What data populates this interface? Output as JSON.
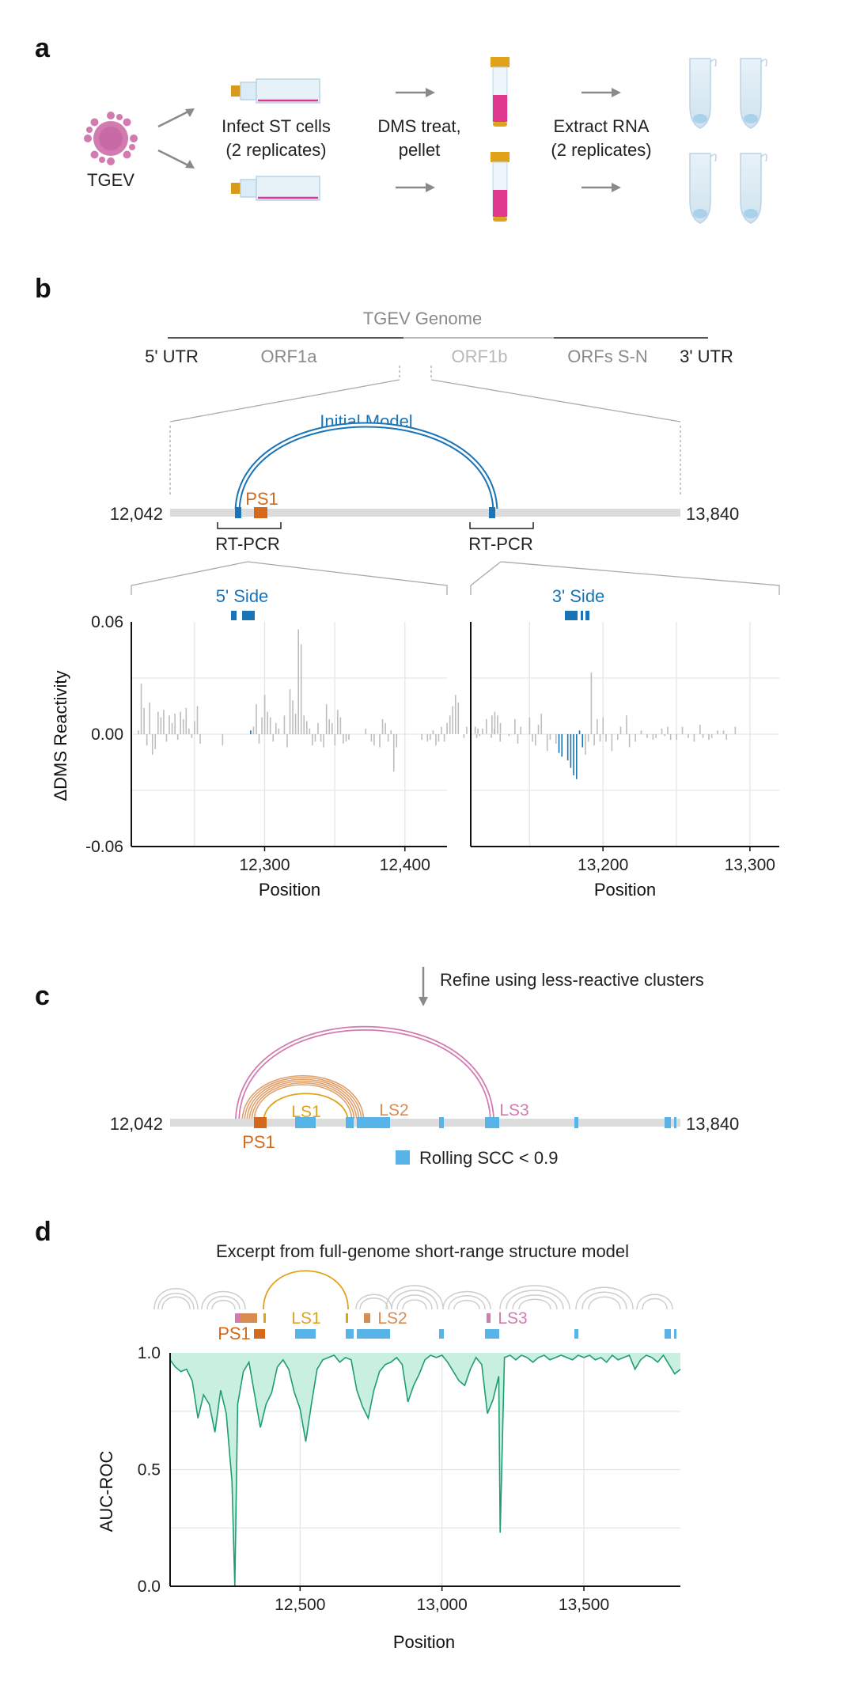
{
  "panels": {
    "a": "a",
    "b": "b",
    "c": "c",
    "d": "d"
  },
  "panel_a": {
    "virus_label": "TGEV",
    "step1_line1": "Infect ST cells",
    "step1_line2": "(2 replicates)",
    "step2_line1": "DMS treat,",
    "step2_line2": "pellet",
    "step3_line1": "Extract RNA",
    "step3_line2": "(2 replicates)"
  },
  "panel_b": {
    "genome_title": "TGEV Genome",
    "utr5": "5' UTR",
    "orf1a": "ORF1a",
    "orf1b": "ORF1b",
    "orfs_sn": "ORFs S-N",
    "utr3": "3' UTR",
    "initial_model": "Initial Model",
    "ps1": "PS1",
    "start_pos": "12,042",
    "end_pos": "13,840",
    "rtpcr_left": "RT-PCR",
    "rtpcr_right": "RT-PCR",
    "side5": "5' Side",
    "side3": "3' Side"
  },
  "panel_c": {
    "refine_label": "Refine using less-reactive clusters",
    "start_pos": "12,042",
    "end_pos": "13,840",
    "ps1": "PS1",
    "ls1": "LS1",
    "ls2": "LS2",
    "ls3": "LS3",
    "legend": "Rolling SCC < 0.9"
  },
  "panel_d": {
    "title": "Excerpt from full-genome short-range structure model",
    "ps1": "PS1",
    "ls1": "LS1",
    "ls2": "LS2",
    "ls3": "LS3"
  },
  "colors": {
    "blue": "#1a74b5",
    "light_blue": "#57b3e8",
    "orange": "#d4691c",
    "gold": "#e0a21b",
    "peach": "#d98b52",
    "pink": "#d27bb0",
    "green": "#1f9e6e",
    "green_fill": "#c8efe0",
    "magenta": "#e0388f"
  },
  "chart_data": [
    {
      "type": "bar",
      "panel": "b-left",
      "xlabel": "Position",
      "ylabel": "ΔDMS Reactivity",
      "ylim": [
        -0.06,
        0.06
      ],
      "xlim": [
        12205,
        12430
      ],
      "yticks": [
        "0.06",
        "0.00",
        "-0.06"
      ],
      "xticks": [
        "12,300",
        "12,400"
      ],
      "xtick_values": [
        12300,
        12400
      ],
      "x_start": 12210,
      "values": [
        0.002,
        0.027,
        0.014,
        -0.006,
        0.017,
        -0.011,
        -0.008,
        0.012,
        0.009,
        0.013,
        -0.004,
        0.01,
        0.006,
        0.011,
        -0.003,
        0.012,
        0.008,
        0.014,
        0.003,
        -0.002,
        0.007,
        0.015,
        -0.005,
        0.0,
        0.0,
        0.0,
        0.0,
        0.0,
        0.0,
        0.0,
        -0.006,
        0.0,
        0.0,
        0.0,
        0.0,
        0.0,
        0.0,
        0.0,
        0.0,
        0.0,
        0.002,
        0.004,
        0.016,
        -0.005,
        0.009,
        0.021,
        0.012,
        0.009,
        -0.004,
        0.006,
        0.003,
        0.0,
        0.01,
        -0.007,
        0.024,
        0.018,
        0.011,
        0.056,
        0.048,
        0.01,
        0.007,
        0.003,
        -0.006,
        -0.004,
        0.006,
        -0.004,
        -0.007,
        0.016,
        0.008,
        0.006,
        -0.006,
        0.013,
        0.009,
        -0.005,
        -0.004,
        -0.003,
        0.0,
        0.0,
        0.0,
        0.0,
        0.0,
        0.003,
        0.0,
        -0.004,
        -0.006,
        0.0,
        -0.007,
        0.008,
        0.006,
        -0.004,
        0.002,
        -0.02,
        -0.007,
        0.0,
        0.0,
        0.0,
        0.0,
        0.0,
        0.0,
        0.0,
        0.0,
        -0.003,
        0.0,
        -0.004,
        -0.003,
        0.002,
        -0.006,
        -0.004,
        0.004,
        -0.004,
        0.006,
        0.01,
        0.015,
        0.021,
        0.017,
        0.0,
        -0.002,
        0.004,
        0.0,
        0.0,
        0.004,
        0.003,
        0.0,
        0.0,
        0.008,
        0.0,
        0.01,
        0.012,
        0.01,
        0.006
      ],
      "highlight_range": [
        12282,
        12291
      ],
      "highlight_color": "#1a74b5"
    },
    {
      "type": "bar",
      "panel": "b-right",
      "xlabel": "Position",
      "ylabel": "",
      "ylim": [
        -0.06,
        0.06
      ],
      "xlim": [
        13110,
        13320
      ],
      "yticks": [],
      "xticks": [
        "13,200",
        "13,300"
      ],
      "xtick_values": [
        13200,
        13300
      ],
      "x_start": 13112,
      "values": [
        0.0,
        -0.002,
        -0.001,
        0.003,
        0.0,
        0.0,
        -0.002,
        0.003,
        0.0,
        -0.004,
        0.0,
        0.0,
        -0.001,
        0.0,
        0.008,
        -0.005,
        0.004,
        0.0,
        0.0,
        0.009,
        -0.004,
        -0.006,
        0.005,
        0.011,
        0.0,
        -0.009,
        -0.003,
        0.0,
        -0.005,
        -0.01,
        -0.012,
        0.0,
        -0.014,
        -0.018,
        -0.022,
        -0.024,
        0.002,
        -0.007,
        -0.011,
        -0.004,
        0.033,
        -0.006,
        0.008,
        -0.004,
        0.009,
        -0.004,
        0.0,
        -0.009,
        0.0,
        -0.003,
        0.004,
        0.0,
        0.01,
        -0.007,
        0.0,
        -0.004,
        0.0,
        0.002,
        0.0,
        -0.002,
        0.0,
        -0.003,
        -0.002,
        0.0,
        0.003,
        -0.001,
        0.004,
        -0.003,
        0.0,
        -0.003,
        0.0,
        0.004,
        0.0,
        -0.002,
        0.0,
        -0.004,
        0.0,
        0.005,
        -0.002,
        0.0,
        -0.003,
        -0.002,
        0.0,
        0.002,
        0.0,
        0.002,
        -0.003,
        0.0,
        0.0,
        0.004
      ],
      "highlight_range": [
        13170,
        13186
      ],
      "highlight_color": "#1a74b5"
    },
    {
      "type": "area",
      "panel": "d",
      "xlabel": "Position",
      "ylabel": "AUC-ROC",
      "ylim": [
        0.0,
        1.0
      ],
      "xlim": [
        12042,
        13840
      ],
      "yticks": [
        "1.0",
        "0.5",
        "0.0"
      ],
      "ytick_values": [
        1.0,
        0.5,
        0.0
      ],
      "xticks": [
        "12,500",
        "13,000",
        "13,500"
      ],
      "xtick_values": [
        12500,
        13000,
        13500
      ],
      "x": [
        12042,
        12060,
        12080,
        12100,
        12120,
        12140,
        12160,
        12180,
        12200,
        12220,
        12240,
        12260,
        12270,
        12280,
        12300,
        12320,
        12340,
        12360,
        12380,
        12400,
        12420,
        12440,
        12460,
        12480,
        12500,
        12520,
        12540,
        12560,
        12580,
        12600,
        12620,
        12640,
        12660,
        12680,
        12700,
        12720,
        12740,
        12760,
        12780,
        12800,
        12820,
        12840,
        12860,
        12880,
        12900,
        12920,
        12940,
        12960,
        12980,
        13000,
        13020,
        13040,
        13060,
        13080,
        13100,
        13120,
        13140,
        13160,
        13180,
        13200,
        13205,
        13220,
        13240,
        13260,
        13280,
        13300,
        13320,
        13340,
        13360,
        13380,
        13400,
        13420,
        13440,
        13460,
        13480,
        13500,
        13520,
        13540,
        13560,
        13580,
        13600,
        13620,
        13640,
        13660,
        13680,
        13700,
        13720,
        13740,
        13760,
        13780,
        13800,
        13820,
        13840
      ],
      "values": [
        0.97,
        0.94,
        0.92,
        0.93,
        0.88,
        0.72,
        0.82,
        0.78,
        0.66,
        0.84,
        0.74,
        0.45,
        0.0,
        0.78,
        0.92,
        0.96,
        0.82,
        0.68,
        0.78,
        0.83,
        0.94,
        0.97,
        0.93,
        0.83,
        0.76,
        0.62,
        0.78,
        0.93,
        0.97,
        0.98,
        0.99,
        0.96,
        0.98,
        0.97,
        0.84,
        0.77,
        0.72,
        0.84,
        0.92,
        0.95,
        0.96,
        0.98,
        0.95,
        0.79,
        0.86,
        0.91,
        0.97,
        0.99,
        0.98,
        0.99,
        0.96,
        0.92,
        0.88,
        0.86,
        0.93,
        0.98,
        0.95,
        0.74,
        0.8,
        0.9,
        0.23,
        0.98,
        0.99,
        0.97,
        0.99,
        0.98,
        0.96,
        0.98,
        0.99,
        0.97,
        0.98,
        0.99,
        0.98,
        0.97,
        0.99,
        0.98,
        0.99,
        0.97,
        0.98,
        0.96,
        0.99,
        0.97,
        0.98,
        0.99,
        0.93,
        0.97,
        0.99,
        0.98,
        0.96,
        0.99,
        0.95,
        0.91,
        0.93
      ],
      "color": "#1f9e6e"
    }
  ]
}
